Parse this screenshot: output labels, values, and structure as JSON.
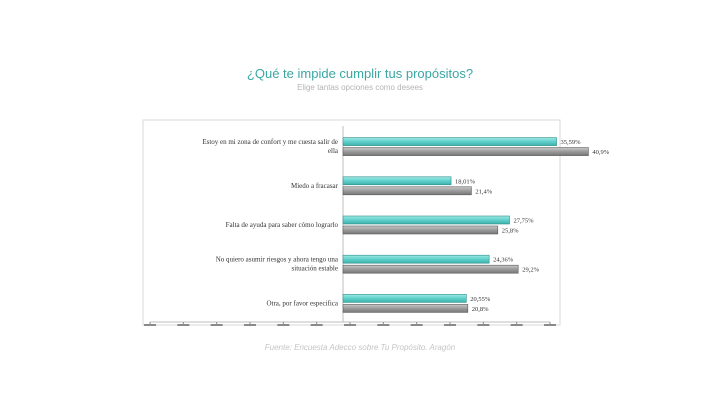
{
  "header": {
    "title": "¿Qué te impide cumplir tus propósitos?",
    "subtitle": "Elige tantas opciones como desees"
  },
  "footer": {
    "source": "Fuente: Encuesta Adecco sobre Tu Propósito. Aragón"
  },
  "colors": {
    "series_a": "#5fd0cb",
    "series_a_edge": "#2f8f8a",
    "series_b": "#9a9a9a",
    "series_b_edge": "#5a5a5a",
    "plot_border": "#d9d9d9"
  },
  "chart_data": {
    "type": "bar",
    "orientation": "horizontal",
    "categories": [
      "Estoy en mi zona de confort y me cuesta salir de ella",
      "Miedo a fracasar",
      "Falta de ayuda para saber cómo lograrlo",
      "No quiero asumir riesgos y ahora tengo una situación estable",
      "Otra, por favor especifica"
    ],
    "series": [
      {
        "values": [
          35.59,
          18.01,
          27.75,
          24.36,
          20.55
        ],
        "labels": [
          "35,59%",
          "18,01%",
          "27,75%",
          "24,36%",
          "20,55%"
        ]
      },
      {
        "values": [
          40.9,
          21.4,
          25.8,
          29.2,
          20.8
        ],
        "labels": [
          "40,9%",
          "21,4%",
          "25,8%",
          "29,2%",
          "20,8%"
        ]
      }
    ],
    "xlim": [
      0,
      60
    ],
    "tick_values": [
      0,
      5,
      10,
      15,
      20,
      25,
      30,
      35,
      40,
      45,
      50,
      55,
      60
    ],
    "tick_labels": [
      "",
      "",
      "",
      "",
      "",
      "",
      "",
      "",
      "",
      "",
      "",
      "",
      ""
    ],
    "grid": false,
    "legend": "none"
  }
}
